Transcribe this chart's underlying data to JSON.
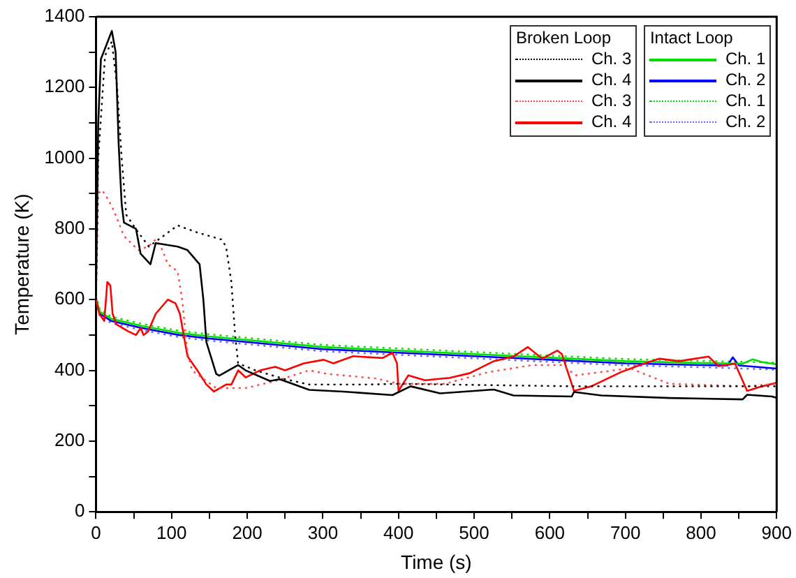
{
  "chart_data": {
    "type": "line",
    "xlabel": "Time (s)",
    "ylabel": "Temperature (K)",
    "xlim": [
      0,
      900
    ],
    "ylim": [
      0,
      1400
    ],
    "xticks": [
      0,
      {
        "value": 50,
        "label": null
      },
      100,
      {
        "value": 150,
        "label": null
      },
      200,
      {
        "value": 250,
        "label": null
      },
      300,
      {
        "value": 350,
        "label": null
      },
      400,
      {
        "value": 450,
        "label": null
      },
      500,
      {
        "value": 550,
        "label": null
      },
      600,
      {
        "value": 650,
        "label": null
      },
      700,
      {
        "value": 750,
        "label": null
      },
      800,
      {
        "value": 850,
        "label": null
      },
      900
    ],
    "yticks": [
      0,
      {
        "value": 100,
        "label": null
      },
      200,
      {
        "value": 300,
        "label": null
      },
      400,
      {
        "value": 500,
        "label": null
      },
      600,
      {
        "value": 700,
        "label": null
      },
      800,
      {
        "value": 900,
        "label": null
      },
      1000,
      {
        "value": 1100,
        "label": null
      },
      1200,
      {
        "value": 1300,
        "label": null
      },
      1400
    ],
    "grid": false,
    "legend": "top right",
    "marker": "none",
    "annotations": [
      "Broken Loop",
      "Intact Loop"
    ],
    "series": [
      {
        "name": "Ch. 3",
        "color": "#000000",
        "line_style": "dotted",
        "x": [
          0,
          3,
          12,
          21,
          28,
          34,
          40,
          56,
          70,
          108,
          134,
          166,
          172,
          179,
          184,
          188,
          211,
          250,
          282,
          359,
          400,
          629,
          900
        ],
        "values": [
          600,
          1000,
          1290,
          1330,
          1200,
          1000,
          840,
          790,
          750,
          810,
          790,
          770,
          750,
          650,
          500,
          420,
          400,
          375,
          360,
          360,
          362,
          355,
          355
        ]
      },
      {
        "name": "Ch. 4",
        "color": "#000000",
        "line_style": "solid",
        "x": [
          0,
          3,
          6.5,
          12,
          21,
          26,
          30,
          34,
          37,
          53,
          59,
          72,
          79,
          108,
          121,
          137,
          142,
          146,
          159,
          163,
          188,
          198,
          230,
          243,
          282,
          327,
          392,
          416,
          455,
          526,
          552,
          629,
          632,
          668,
          758,
          855,
          861,
          894,
          900
        ],
        "values": [
          600,
          1100,
          1280,
          1310,
          1360,
          1300,
          1040,
          870,
          818,
          800,
          730,
          700,
          760,
          750,
          740,
          700,
          600,
          480,
          390,
          385,
          415,
          400,
          370,
          375,
          345,
          340,
          330,
          355,
          335,
          346,
          329,
          326,
          339,
          329,
          322,
          318,
          331,
          326,
          322
        ]
      },
      {
        "name": "Ch. 3",
        "color": "#ff4444",
        "line_style": "dotted",
        "x": [
          0,
          3,
          8,
          17,
          24,
          37,
          56,
          69,
          79,
          88,
          95,
          108,
          114,
          121,
          127,
          146,
          159,
          198,
          237,
          282,
          306,
          371,
          400,
          461,
          519,
          577,
          616,
          635,
          706,
          758,
          861,
          900
        ],
        "values": [
          600,
          900,
          910,
          880,
          850,
          780,
          740,
          750,
          770,
          740,
          700,
          680,
          600,
          450,
          400,
          370,
          350,
          350,
          370,
          400,
          390,
          377,
          362,
          362,
          395,
          415,
          415,
          386,
          406,
          362,
          355,
          362
        ]
      },
      {
        "name": "Ch. 4",
        "color": "#ff0000",
        "line_style": "solid",
        "x": [
          0,
          4.5,
          11,
          15,
          19,
          22,
          27,
          43,
          53,
          59,
          63,
          69,
          79,
          95,
          105,
          111,
          121,
          134,
          146,
          156,
          172,
          179,
          188,
          198,
          217,
          237,
          250,
          275,
          301,
          314,
          340,
          379,
          392,
          398,
          400,
          413,
          435,
          468,
          494,
          526,
          552,
          571,
          590,
          610,
          616,
          632,
          655,
          694,
          719,
          745,
          771,
          810,
          823,
          845,
          861,
          881,
          900
        ],
        "values": [
          600,
          560,
          540,
          650,
          640,
          560,
          530,
          510,
          500,
          520,
          500,
          510,
          560,
          600,
          590,
          560,
          440,
          400,
          360,
          340,
          360,
          360,
          400,
          380,
          400,
          410,
          400,
          420,
          430,
          420,
          440,
          435,
          450,
          420,
          342,
          386,
          372,
          379,
          392,
          426,
          439,
          466,
          433,
          456,
          446,
          342,
          355,
          395,
          415,
          433,
          426,
          439,
          412,
          419,
          342,
          355,
          365
        ]
      },
      {
        "name": "Ch. 1",
        "color": "#00dd00",
        "line_style": "solid",
        "x": [
          0,
          5,
          20,
          60,
          110,
          150,
          200,
          300,
          400,
          500,
          600,
          700,
          800,
          855,
          868,
          880,
          900
        ],
        "values": [
          606,
          566,
          546,
          526,
          506,
          496,
          486,
          466,
          456,
          446,
          436,
          426,
          421,
          419,
          431,
          424,
          417
        ]
      },
      {
        "name": "Ch. 2",
        "color": "#0000ff",
        "line_style": "solid",
        "x": [
          0,
          5,
          20,
          60,
          110,
          150,
          200,
          300,
          400,
          500,
          600,
          700,
          800,
          835,
          842,
          850,
          900
        ],
        "values": [
          600,
          560,
          540,
          520,
          500,
          490,
          480,
          460,
          450,
          440,
          430,
          420,
          415,
          414,
          437,
          414,
          405
        ]
      },
      {
        "name": "Ch. 1",
        "color": "#00dd00",
        "line_style": "dotted",
        "x": [
          0,
          5,
          20,
          60,
          110,
          150,
          200,
          300,
          400,
          500,
          600,
          700,
          800,
          900
        ],
        "values": [
          612,
          572,
          552,
          532,
          512,
          502,
          492,
          472,
          462,
          452,
          442,
          432,
          427,
          422
        ]
      },
      {
        "name": "Ch. 2",
        "color": "#6666ff",
        "line_style": "dotted",
        "x": [
          0,
          5,
          20,
          60,
          110,
          150,
          200,
          300,
          400,
          500,
          600,
          700,
          800,
          900
        ],
        "values": [
          594,
          554,
          534,
          514,
          494,
          484,
          474,
          454,
          444,
          434,
          424,
          414,
          409,
          402
        ]
      }
    ]
  }
}
